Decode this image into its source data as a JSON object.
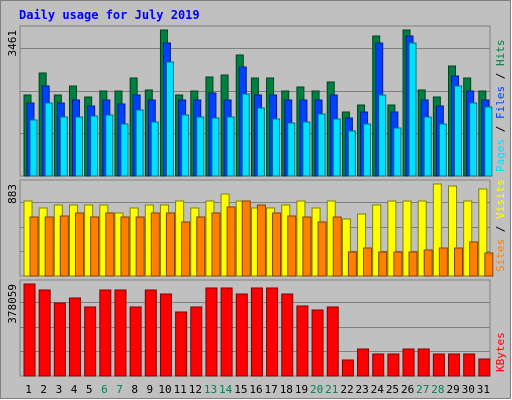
{
  "colors": {
    "background": "#c0c0c0",
    "title": "#0000ff",
    "hits": "#008040",
    "files": "#0040ff",
    "pages": "#00e0ff",
    "visits": "#ffff00",
    "sites": "#ff8000",
    "kbytes": "#ff0000",
    "weekend_day_label": "#00805c",
    "day_label": "#000000",
    "grid": "#808080"
  },
  "chart_data": {
    "type": "bar",
    "title": "Daily usage for July 2019",
    "days": [
      1,
      2,
      3,
      4,
      5,
      6,
      7,
      8,
      9,
      10,
      11,
      12,
      13,
      14,
      15,
      16,
      17,
      18,
      19,
      20,
      21,
      22,
      23,
      24,
      25,
      26,
      27,
      28,
      29,
      30,
      31
    ],
    "weekend_days": [
      6,
      7,
      13,
      14,
      20,
      21,
      27,
      28
    ],
    "panels": [
      {
        "id": "hits_files_pages",
        "max_label": "3461",
        "ymax": 3461,
        "legend": [
          "Pages",
          "Files",
          "Hits"
        ],
        "series": [
          {
            "name": "Hits",
            "values": [
              1925,
              2449,
              1925,
              2126,
              1872,
              2021,
              2017,
              2317,
              2027,
              3461,
              1925,
              2021,
              2343,
              2393,
              2858,
              2317,
              2327,
              2021,
              2105,
              2021,
              2226,
              1526,
              1680,
              3329,
              1680,
              3461,
              2037,
              1872,
              2603,
              2317,
              2021
            ]
          },
          {
            "name": "Files",
            "values": [
              1730,
              2133,
              1730,
              1809,
              1663,
              1809,
              1711,
              1920,
              1809,
              3153,
              1809,
              1809,
              1957,
              1809,
              2583,
              1920,
              1920,
              1809,
              1809,
              1809,
              1920,
              1365,
              1526,
              3153,
              1526,
              3329,
              1809,
              1663,
              2376,
              2021,
              1809
            ]
          },
          {
            "name": "Pages",
            "values": [
              1324,
              1736,
              1391,
              1391,
              1411,
              1446,
              1226,
              1561,
              1291,
              2713,
              1455,
              1391,
              1386,
              1391,
              1946,
              1623,
              1344,
              1246,
              1287,
              1472,
              1344,
              1055,
              1226,
              1915,
              1135,
              3153,
              1391,
              1226,
              2126,
              1735,
              1640
            ]
          }
        ]
      },
      {
        "id": "visits_sites",
        "max_label": "883",
        "ymax": 883,
        "legend": [
          "Sites",
          "Visits"
        ],
        "series": [
          {
            "name": "Visits",
            "values": [
              720,
              651,
              686,
              686,
              678,
              686,
              601,
              651,
              686,
              686,
              720,
              651,
              720,
              783,
              720,
              651,
              651,
              686,
              720,
              651,
              720,
              550,
              597,
              686,
              720,
              720,
              720,
              883,
              863,
              720,
              831
            ]
          },
          {
            "name": "Sites",
            "values": [
              567,
              567,
              580,
              605,
              567,
              605,
              568,
              567,
              605,
              605,
              516,
              567,
              605,
              659,
              720,
              686,
              605,
              580,
              567,
              516,
              567,
              233,
              270,
              233,
              233,
              233,
              254,
              271,
              267,
              326,
              221
            ]
          }
        ]
      },
      {
        "id": "kbytes",
        "max_label": "378059",
        "ymax": 378059,
        "legend": [
          "KBytes"
        ],
        "series": [
          {
            "name": "KBytes",
            "values": [
              378059,
              355368,
              300000,
              319636,
              281818,
              355368,
              355368,
              281818,
              355368,
              336000,
              264561,
              281818,
              362240,
              362240,
              336000,
              362240,
              362240,
              336000,
              285714,
              270000,
              281818,
              67200,
              113000,
              91000,
              91000,
              113000,
              113000,
              91000,
              91000,
              91000,
              68000
            ]
          }
        ]
      }
    ]
  }
}
